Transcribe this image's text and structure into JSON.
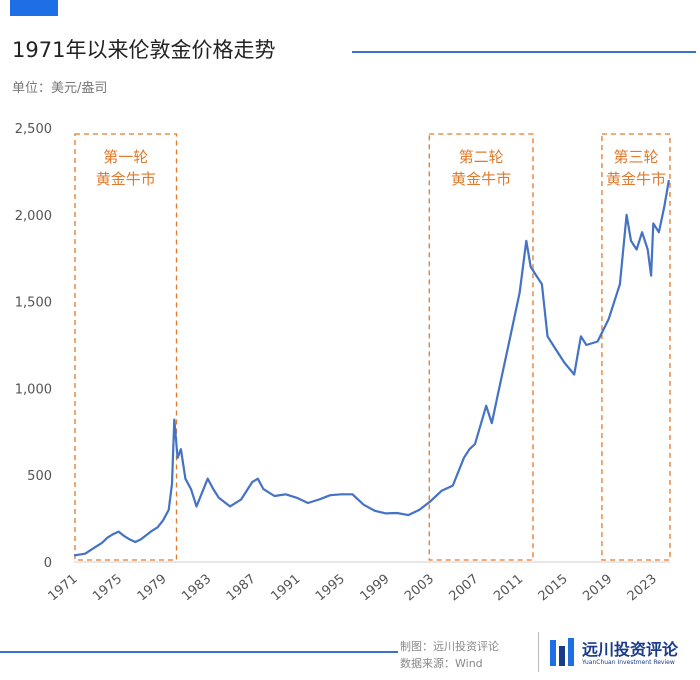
{
  "title": "1971年以来伦敦金价格走势",
  "unit_label": "单位：美元/盎司",
  "credits": {
    "author": "制图：远川投资评论",
    "source": "数据来源：Wind"
  },
  "brand": {
    "name": "远川投资评论",
    "sub": "YuanChuan Investment Review"
  },
  "colors": {
    "accent": "#1e6ee6",
    "line": "#4472c4",
    "box": "#e07a2e"
  },
  "chart_data": {
    "type": "line",
    "title": "1971年以来伦敦金价格走势",
    "ylabel": "单位：美元/盎司",
    "ylim": [
      0,
      2500
    ],
    "xlim": [
      1971,
      2024.5
    ],
    "y_ticks": [
      0,
      500,
      1000,
      1500,
      2000,
      2500
    ],
    "y_tick_labels": [
      "0",
      "500",
      "1,000",
      "1,500",
      "2,000",
      "2,500"
    ],
    "x_ticks": [
      1971,
      1975,
      1979,
      1983,
      1987,
      1991,
      1995,
      1999,
      2003,
      2007,
      2011,
      2015,
      2019,
      2023
    ],
    "x_tick_labels": [
      "1971",
      "1975",
      "1979",
      "1983",
      "1987",
      "1991",
      "1995",
      "1999",
      "2003",
      "2007",
      "2011",
      "2015",
      "2019",
      "2023"
    ],
    "grid": false,
    "series": [
      {
        "x": [
          1971.0,
          1972.0,
          1973.0,
          1973.5,
          1974.0,
          1974.5,
          1975.0,
          1975.5,
          1976.0,
          1976.5,
          1977.0,
          1978.0,
          1978.5,
          1979.0,
          1979.5,
          1979.8,
          1980.0,
          1980.3,
          1980.6,
          1981.0,
          1981.5,
          1982.0,
          1982.5,
          1983.0,
          1983.5,
          1984.0,
          1985.0,
          1986.0,
          1987.0,
          1987.5,
          1988.0,
          1989.0,
          1990.0,
          1991.0,
          1992.0,
          1993.0,
          1994.0,
          1995.0,
          1996.0,
          1997.0,
          1998.0,
          1999.0,
          2000.0,
          2001.0,
          2002.0,
          2003.0,
          2004.0,
          2005.0,
          2006.0,
          2006.5,
          2007.0,
          2008.0,
          2008.5,
          2009.0,
          2010.0,
          2011.0,
          2011.6,
          2012.0,
          2012.5,
          2013.0,
          2013.5,
          2014.0,
          2015.0,
          2015.9,
          2016.5,
          2017.0,
          2018.0,
          2019.0,
          2019.5,
          2020.0,
          2020.6,
          2021.0,
          2021.5,
          2022.0,
          2022.5,
          2022.8,
          2023.0,
          2023.5,
          2024.0,
          2024.4
        ],
        "values": [
          38,
          48,
          90,
          110,
          140,
          160,
          175,
          150,
          130,
          115,
          130,
          180,
          200,
          240,
          300,
          450,
          820,
          600,
          650,
          480,
          420,
          320,
          400,
          480,
          420,
          370,
          320,
          360,
          460,
          480,
          420,
          380,
          390,
          370,
          340,
          360,
          385,
          390,
          390,
          330,
          295,
          280,
          282,
          270,
          300,
          350,
          410,
          440,
          600,
          650,
          680,
          900,
          800,
          950,
          1250,
          1550,
          1850,
          1700,
          1650,
          1600,
          1300,
          1250,
          1150,
          1080,
          1300,
          1250,
          1270,
          1400,
          1500,
          1600,
          2000,
          1850,
          1800,
          1900,
          1800,
          1650,
          1950,
          1900,
          2050,
          2200
        ]
      }
    ],
    "annotations": [
      {
        "label": [
          "第一轮",
          "黄金牛市"
        ],
        "range": [
          1971,
          1980.2
        ]
      },
      {
        "label": [
          "第二轮",
          "黄金牛市"
        ],
        "range": [
          2002.8,
          2012.2
        ]
      },
      {
        "label": [
          "第三轮",
          "黄金牛市"
        ],
        "range": [
          2018.3,
          2024.5
        ]
      }
    ]
  }
}
